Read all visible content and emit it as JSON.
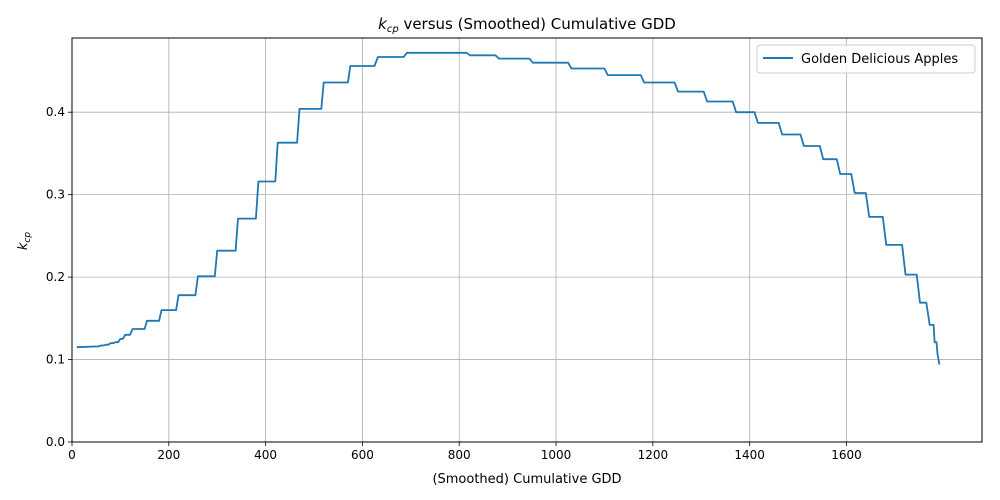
{
  "chart_data": {
    "type": "line",
    "title_main": "k",
    "title_sub": "cp",
    "title_rest": " versus (Smoothed) Cumulative GDD",
    "xlabel": "(Smoothed) Cumulative GDD",
    "ylabel_main": "k",
    "ylabel_sub": "cp",
    "xlim": [
      0,
      1880
    ],
    "ylim": [
      0,
      0.49
    ],
    "xticks": [
      0,
      200,
      400,
      600,
      800,
      1000,
      1200,
      1400,
      1600
    ],
    "yticks": [
      0.0,
      0.1,
      0.2,
      0.3,
      0.4
    ],
    "xtick_labels": [
      "0",
      "200",
      "400",
      "600",
      "800",
      "1000",
      "1200",
      "1400",
      "1600"
    ],
    "ytick_labels": [
      "0.0",
      "0.1",
      "0.2",
      "0.3",
      "0.4"
    ],
    "grid": true,
    "legend_position": "top-right",
    "series": [
      {
        "name": "Golden Delicious Apples",
        "color": "#1f77b4",
        "x": [
          10,
          55,
          60,
          65,
          70,
          75,
          80,
          85,
          90,
          95,
          100,
          105,
          110,
          120,
          125,
          130,
          150,
          155,
          180,
          185,
          215,
          220,
          255,
          260,
          295,
          300,
          338,
          343,
          380,
          385,
          420,
          425,
          465,
          470,
          515,
          520,
          570,
          575,
          625,
          632,
          685,
          692,
          815,
          822,
          875,
          882,
          945,
          952,
          1025,
          1032,
          1100,
          1107,
          1175,
          1182,
          1245,
          1252,
          1305,
          1312,
          1365,
          1372,
          1410,
          1417,
          1460,
          1467,
          1505,
          1512,
          1545,
          1552,
          1580,
          1587,
          1610,
          1617,
          1640,
          1647,
          1675,
          1682,
          1715,
          1722,
          1745,
          1752,
          1765,
          1772,
          1780,
          1782,
          1786,
          1788,
          1792
        ],
        "y": [
          0.115,
          0.116,
          0.117,
          0.117,
          0.118,
          0.118,
          0.12,
          0.12,
          0.121,
          0.121,
          0.125,
          0.125,
          0.13,
          0.13,
          0.137,
          0.137,
          0.137,
          0.147,
          0.147,
          0.16,
          0.16,
          0.178,
          0.178,
          0.201,
          0.201,
          0.232,
          0.232,
          0.271,
          0.271,
          0.316,
          0.316,
          0.363,
          0.363,
          0.404,
          0.404,
          0.436,
          0.436,
          0.456,
          0.456,
          0.467,
          0.467,
          0.472,
          0.472,
          0.469,
          0.469,
          0.465,
          0.465,
          0.46,
          0.46,
          0.453,
          0.453,
          0.445,
          0.445,
          0.436,
          0.436,
          0.425,
          0.425,
          0.413,
          0.413,
          0.4,
          0.4,
          0.387,
          0.387,
          0.373,
          0.373,
          0.359,
          0.359,
          0.343,
          0.343,
          0.325,
          0.325,
          0.302,
          0.302,
          0.273,
          0.273,
          0.239,
          0.239,
          0.203,
          0.203,
          0.169,
          0.169,
          0.142,
          0.142,
          0.121,
          0.121,
          0.107,
          0.094
        ]
      }
    ]
  }
}
